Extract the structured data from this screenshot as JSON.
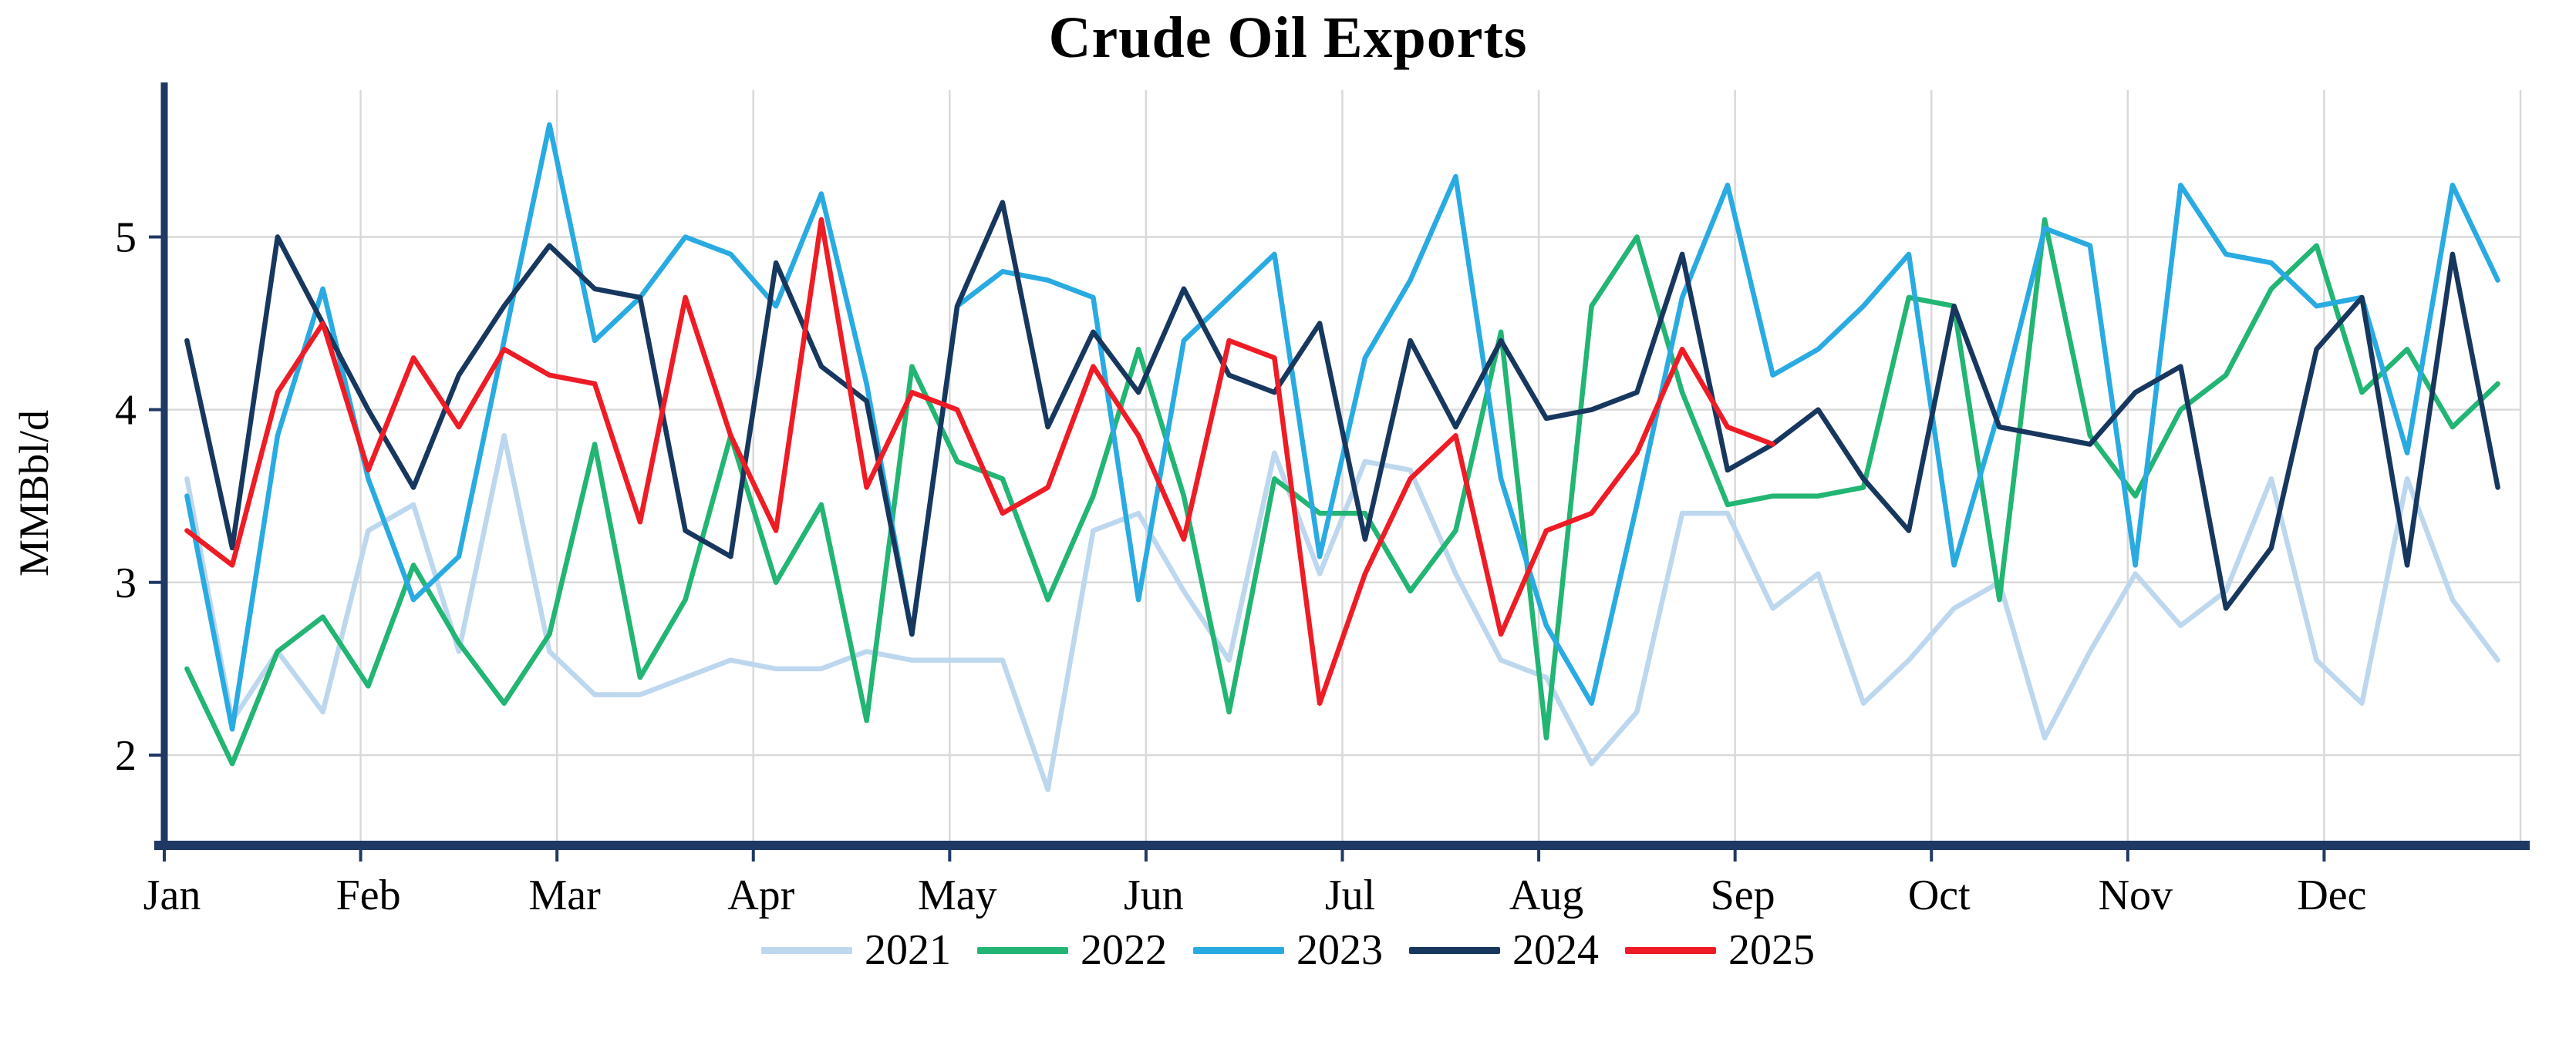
{
  "chart_data": {
    "type": "line",
    "title": "Crude Oil Exports",
    "xlabel": "",
    "ylabel": "MMBbl/d",
    "x_unit": "week-of-year",
    "weeks_per_year": 52,
    "months": [
      "Jan",
      "Feb",
      "Mar",
      "Apr",
      "May",
      "Jun",
      "Jul",
      "Aug",
      "Sep",
      "Oct",
      "Nov",
      "Dec"
    ],
    "yticks": [
      2,
      3,
      4,
      5
    ],
    "ylim": [
      1.5,
      5.85
    ],
    "grid": true,
    "legend_position": "bottom",
    "axis_color": "#1f3864",
    "grid_color": "#d9d9d9",
    "tick_label_color": "#000000",
    "series": [
      {
        "name": "2021",
        "color": "#bdd7ee",
        "values": [
          3.6,
          2.2,
          2.6,
          2.25,
          3.3,
          3.45,
          2.6,
          3.85,
          2.6,
          2.35,
          2.35,
          2.45,
          2.55,
          2.5,
          2.5,
          2.6,
          2.55,
          2.55,
          2.55,
          1.8,
          3.3,
          3.4,
          2.95,
          2.55,
          3.75,
          3.05,
          3.7,
          3.65,
          3.05,
          2.55,
          2.45,
          1.95,
          2.25,
          3.4,
          3.4,
          2.85,
          3.05,
          2.3,
          2.55,
          2.85,
          3.0,
          2.1,
          2.6,
          3.05,
          2.75,
          2.95,
          3.6,
          2.55,
          2.3,
          3.6,
          2.9,
          2.55
        ]
      },
      {
        "name": "2022",
        "color": "#22b573",
        "values": [
          2.5,
          1.95,
          2.6,
          2.8,
          2.4,
          3.1,
          2.65,
          2.3,
          2.7,
          3.8,
          2.45,
          2.9,
          3.85,
          3.0,
          3.45,
          2.2,
          4.25,
          3.7,
          3.6,
          2.9,
          3.5,
          4.35,
          3.5,
          2.25,
          3.6,
          3.4,
          3.4,
          2.95,
          3.3,
          4.45,
          2.1,
          4.6,
          5.0,
          4.1,
          3.45,
          3.5,
          3.5,
          3.55,
          4.65,
          4.6,
          2.9,
          5.1,
          3.85,
          3.5,
          4.0,
          4.2,
          4.7,
          4.95,
          4.1,
          4.35,
          3.9,
          4.15
        ]
      },
      {
        "name": "2023",
        "color": "#29abe2",
        "values": [
          3.5,
          2.15,
          3.85,
          4.7,
          3.6,
          2.9,
          3.15,
          4.4,
          5.65,
          4.4,
          4.65,
          5.0,
          4.9,
          4.6,
          5.25,
          4.15,
          2.7,
          4.6,
          4.8,
          4.75,
          4.65,
          2.9,
          4.4,
          4.65,
          4.9,
          3.15,
          4.3,
          4.75,
          5.35,
          3.6,
          2.75,
          2.3,
          3.45,
          4.65,
          5.3,
          4.2,
          4.35,
          4.6,
          4.9,
          3.1,
          4.0,
          5.05,
          4.95,
          3.1,
          5.3,
          4.9,
          4.85,
          4.6,
          4.65,
          3.75,
          5.3,
          4.75
        ]
      },
      {
        "name": "2024",
        "color": "#17375e",
        "values": [
          4.4,
          3.2,
          5.0,
          4.5,
          4.0,
          3.55,
          4.2,
          4.6,
          4.95,
          4.7,
          4.65,
          3.3,
          3.15,
          4.85,
          4.25,
          4.05,
          2.7,
          4.6,
          5.2,
          3.9,
          4.45,
          4.1,
          4.7,
          4.2,
          4.1,
          4.5,
          3.25,
          4.4,
          3.9,
          4.4,
          3.95,
          4.0,
          4.1,
          4.9,
          3.65,
          3.8,
          4.0,
          3.6,
          3.3,
          4.6,
          3.9,
          3.85,
          3.8,
          4.1,
          4.25,
          2.85,
          3.2,
          4.35,
          4.65,
          3.1,
          4.9,
          3.55
        ]
      },
      {
        "name": "2025",
        "color": "#ee1c25",
        "values": [
          3.3,
          3.1,
          4.1,
          4.5,
          3.65,
          4.3,
          3.9,
          4.35,
          4.2,
          4.15,
          3.35,
          4.65,
          3.85,
          3.3,
          5.1,
          3.55,
          4.1,
          4.0,
          3.4,
          3.55,
          4.25,
          3.85,
          3.25,
          4.4,
          4.3,
          2.3,
          3.05,
          3.6,
          3.85,
          2.7,
          3.3,
          3.4,
          3.75,
          4.35,
          3.9,
          3.8
        ]
      }
    ]
  }
}
